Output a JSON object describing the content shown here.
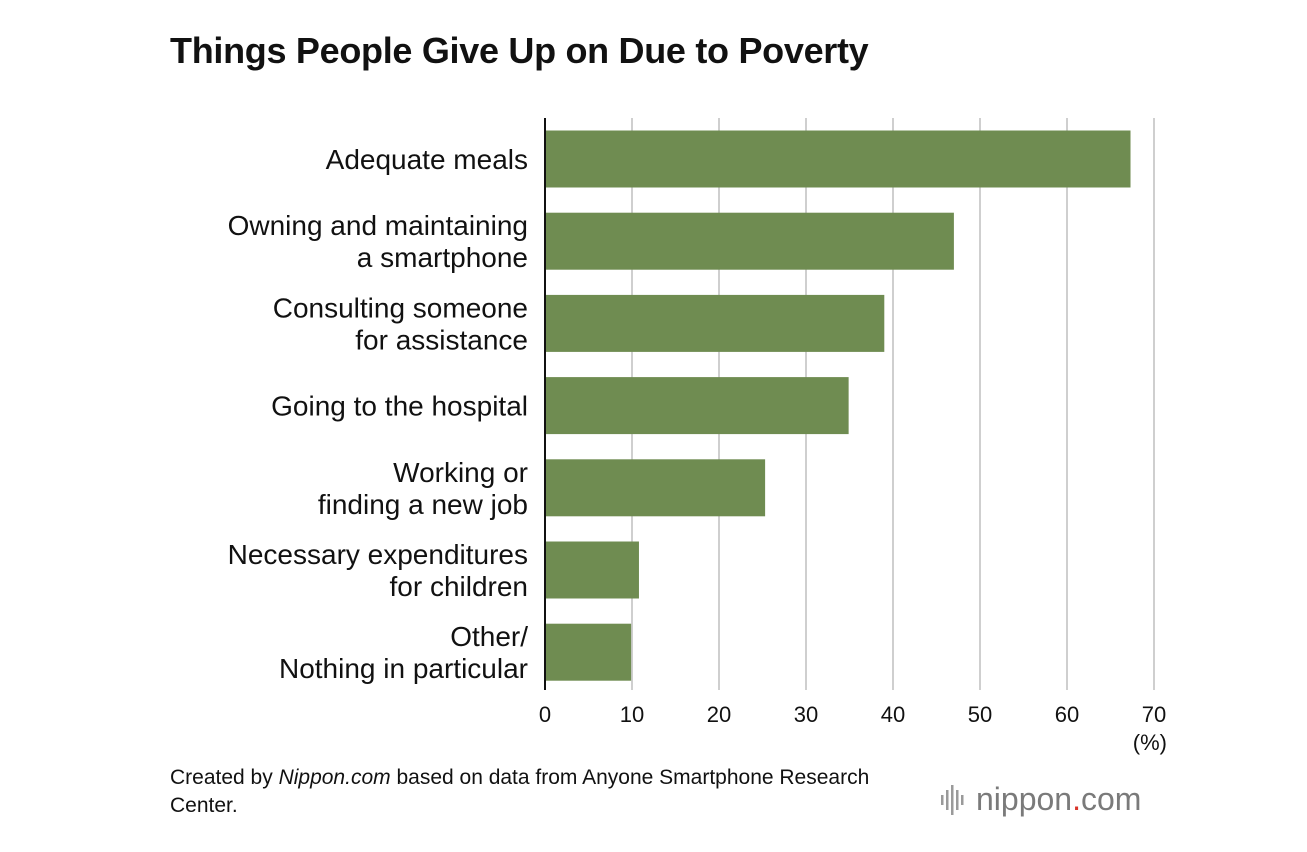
{
  "chart_data": {
    "type": "bar",
    "orientation": "horizontal",
    "title": "Things People Give Up on Due to Poverty",
    "categories": [
      [
        "Adequate meals"
      ],
      [
        "Owning and maintaining",
        "a smartphone"
      ],
      [
        "Consulting someone",
        "for assistance"
      ],
      [
        "Going to the hospital"
      ],
      [
        "Working or",
        "finding a new job"
      ],
      [
        "Necessary expenditures",
        "for children"
      ],
      [
        "Other/",
        "Nothing in particular"
      ]
    ],
    "values": [
      67.3,
      47.0,
      39.0,
      34.9,
      25.3,
      10.8,
      9.9
    ],
    "xlim": [
      0,
      70
    ],
    "xticks": [
      "0",
      "10",
      "20",
      "30",
      "40",
      "50",
      "60",
      "70"
    ],
    "xlabel": "(%)",
    "ylabel": "",
    "grid": true,
    "bar_color": "#6f8c51"
  },
  "source": {
    "prefix": "Created by ",
    "publisher": "Nippon.com",
    "suffix": " based on data from Anyone Smartphone Research Center."
  },
  "logo": {
    "icon": "sound-wave-icon",
    "word_main": "nippon",
    "word_dot": ".",
    "word_end": "com",
    "color": "#7a7a7a",
    "dot_color": "#d8352a"
  }
}
